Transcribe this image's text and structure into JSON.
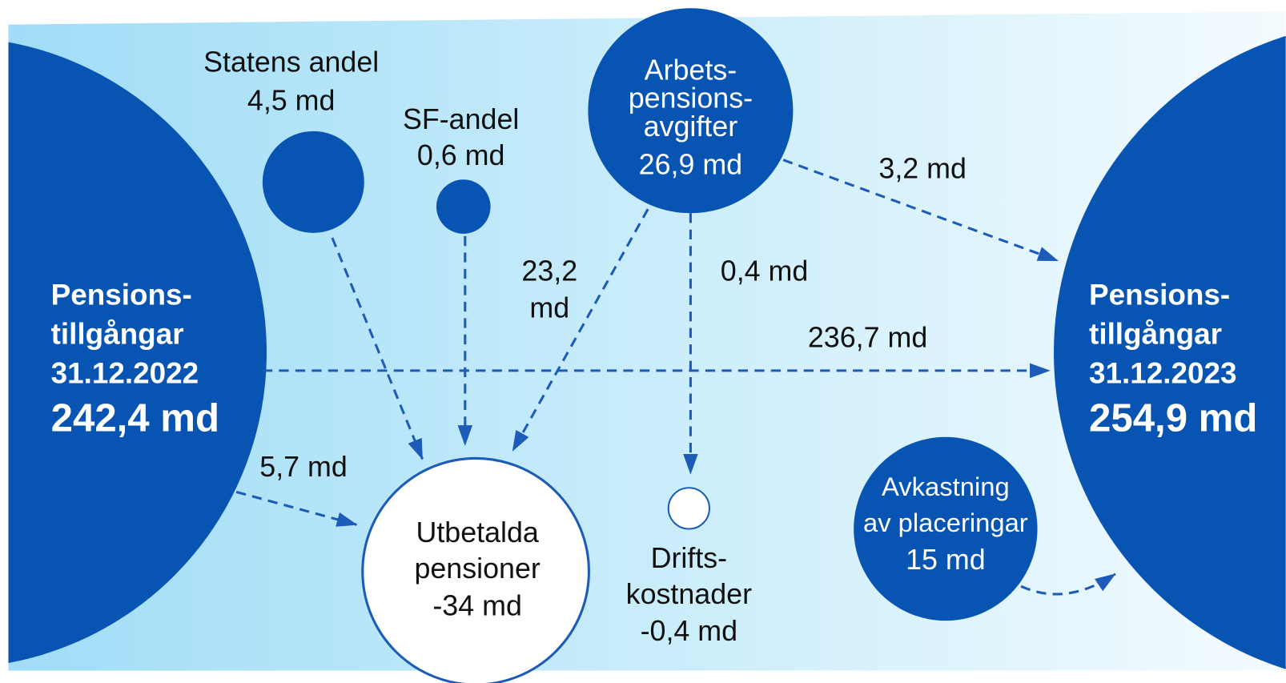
{
  "nodes": [
    {
      "lines": [
        "Pensions-",
        "tillgångar",
        "31.12.2022",
        "242,4 md"
      ]
    },
    {
      "lines": [
        "Pensions-",
        "tillgångar",
        "31.12.2023",
        "254,9 md"
      ]
    },
    {
      "lines": [
        "Statens andel",
        "4,5 md"
      ]
    },
    {
      "lines": [
        "SF-andel",
        "0,6 md"
      ]
    },
    {
      "lines": [
        "Arbets-",
        "pensions-",
        "avgifter",
        "26,9 md"
      ]
    },
    {
      "lines": [
        "Utbetalda",
        "pensioner",
        "-34 md"
      ]
    },
    {
      "lines": [
        "Drifts-",
        "kostnader",
        "-0,4 md"
      ]
    },
    {
      "lines": [
        "Avkastning",
        "av placeringar",
        "15 md"
      ]
    }
  ],
  "edges": [
    {
      "lines": [
        "23,2",
        "md"
      ]
    },
    {
      "lines": [
        "0,4 md"
      ]
    },
    {
      "lines": [
        "3,2 md"
      ]
    },
    {
      "lines": [
        "236,7 md"
      ]
    },
    {
      "lines": [
        "5,7 md"
      ]
    }
  ]
}
